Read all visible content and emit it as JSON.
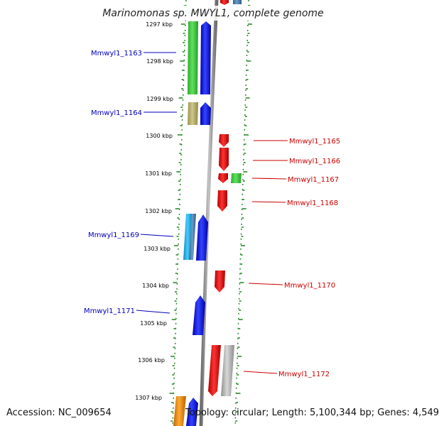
{
  "title": "Marinomonas sp. MWYL1, complete genome",
  "footer": {
    "accession": "Accession: NC_009654",
    "topology": "Topology: circular; Length: 5,100,344 bp; Genes: 4,549"
  },
  "colors": {
    "background": "#ffffff",
    "tick": "#2e8b2e",
    "backbone": "#8c8c8c",
    "label_left": "#0000bb",
    "label_right": "#cc0000",
    "green": "#44cc44",
    "blue": "#1111ee",
    "red": "#ee1111",
    "khaki": "#b8b070",
    "cyan": "#22aadd",
    "steel": "#4a7fb0",
    "gray": "#b4b4b4",
    "orange": "#ee8800"
  },
  "ruler": [
    "1297 kbp",
    "1298 kbp",
    "1299 kbp",
    "1300 kbp",
    "1301 kbp",
    "1302 kbp",
    "1303 kbp",
    "1304 kbp",
    "1305 kbp",
    "1306 kbp",
    "1307 kbp"
  ],
  "gene_labels": {
    "left": [
      "Mmwyl1_1163",
      "Mmwyl1_1164",
      "Mmwyl1_1169",
      "Mmwyl1_1171"
    ],
    "right": [
      "Mmwyl1_1165",
      "Mmwyl1_1166",
      "Mmwyl1_1167",
      "Mmwyl1_1168",
      "Mmwyl1_1170",
      "Mmwyl1_1172"
    ]
  }
}
